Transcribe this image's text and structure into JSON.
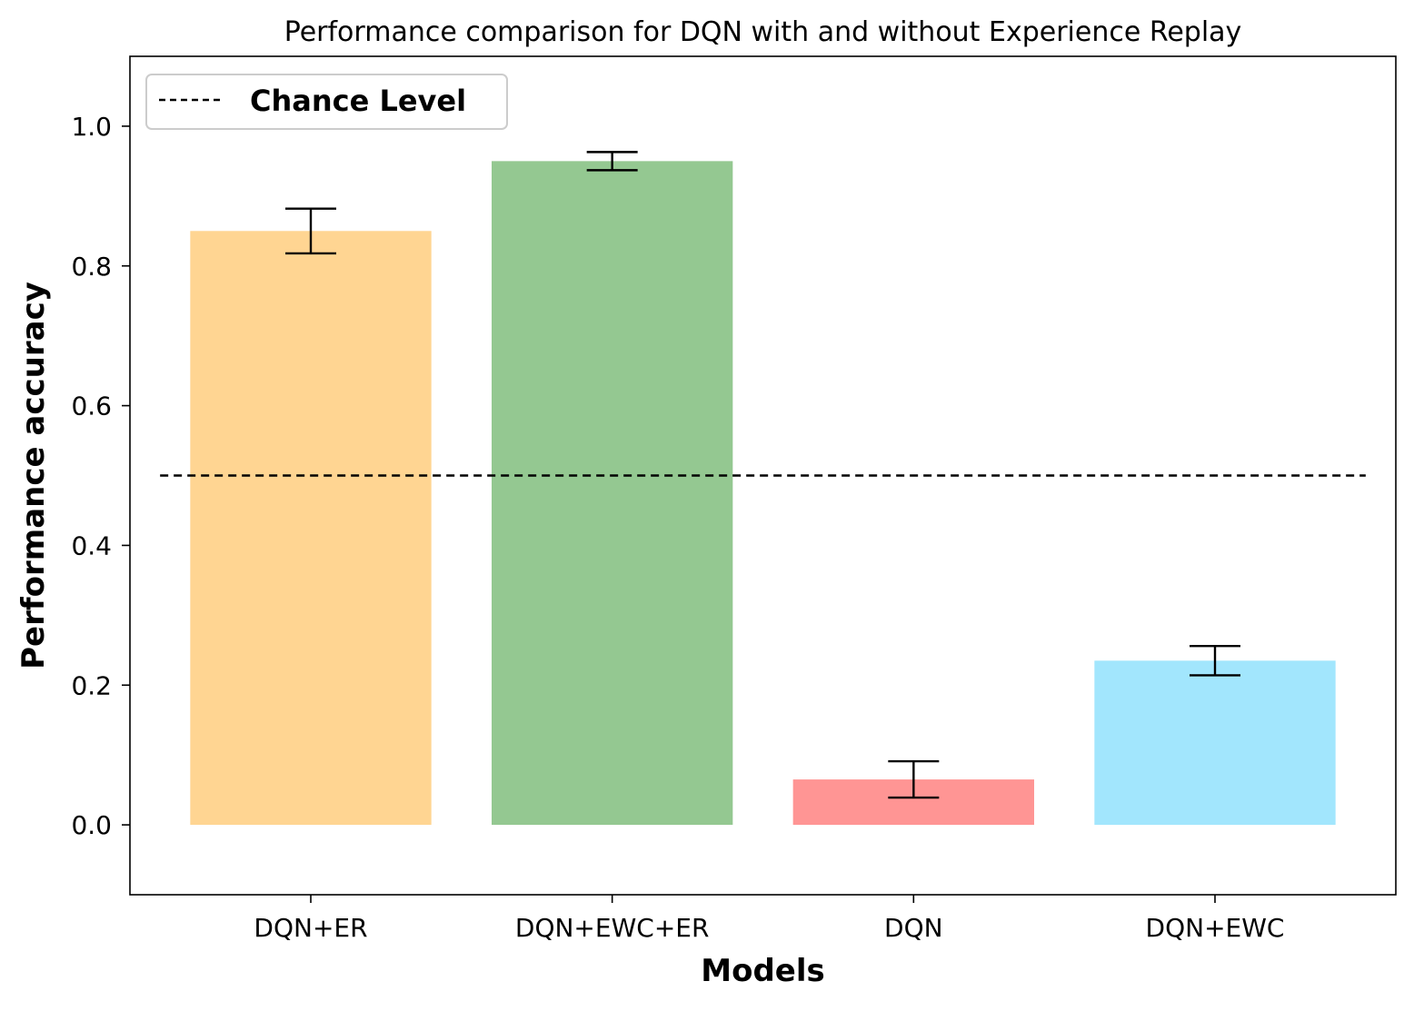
{
  "chart_data": {
    "type": "bar",
    "title": "Performance comparison for DQN with and without Experience Replay",
    "xlabel": "Models",
    "ylabel": "Performance accuracy",
    "categories": [
      "DQN+ER",
      "DQN+EWC+ER",
      "DQN",
      "DQN+EWC"
    ],
    "values": [
      0.85,
      0.95,
      0.065,
      0.235
    ],
    "errors": [
      0.032,
      0.013,
      0.026,
      0.021
    ],
    "bar_colors": [
      "#FFD592",
      "#94C891",
      "#FF9594",
      "#A2E6FD"
    ],
    "ylim": [
      -0.1,
      1.1
    ],
    "yticks": [
      0.0,
      0.2,
      0.4,
      0.6,
      0.8,
      1.0
    ],
    "ytick_labels": [
      "0.0",
      "0.2",
      "0.4",
      "0.6",
      "0.8",
      "1.0"
    ],
    "reference_line": {
      "label": "Chance Level",
      "y": 0.5,
      "style": "dashed",
      "color": "#000000"
    },
    "legend": {
      "placement": "top-left",
      "entries": [
        "Chance Level"
      ]
    },
    "grid": false
  }
}
